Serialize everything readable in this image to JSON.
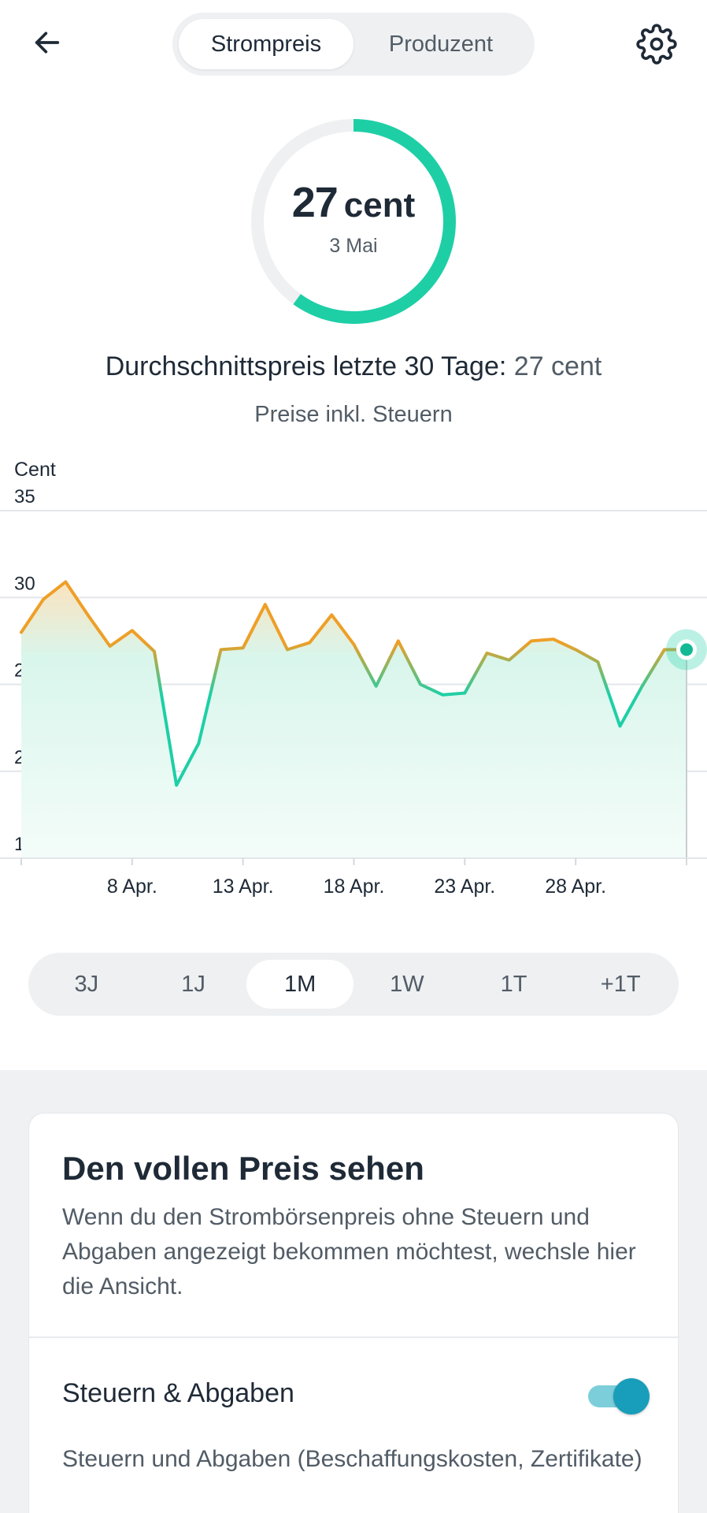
{
  "header": {
    "back_icon": "arrow-left-icon",
    "settings_icon": "gear-icon",
    "tabs": [
      {
        "label": "Strompreis",
        "active": true
      },
      {
        "label": "Produzent",
        "active": false
      }
    ]
  },
  "current_price": {
    "value": "27",
    "unit": "cent",
    "date": "3 Mai",
    "gauge_fraction": 0.6
  },
  "average": {
    "label": "Durchschnittspreis letzte 30 Tage:",
    "value": "27 cent"
  },
  "tax_note": "Preise inkl. Steuern",
  "chart_data": {
    "type": "area",
    "ylabel": "Cent",
    "ylim": [
      15,
      35
    ],
    "yticks": [
      "35",
      "30",
      "25",
      "20",
      "15"
    ],
    "xticks": [
      "8 Apr.",
      "13 Apr.",
      "18 Apr.",
      "23 Apr.",
      "28 Apr."
    ],
    "x_start": "3 Apr.",
    "x_end": "3 Mai",
    "grid": true,
    "colors": {
      "high": "#ee9f27",
      "low": "#1ecfa6"
    },
    "series": [
      {
        "x": [
          "3 Apr.",
          "4 Apr.",
          "5 Apr.",
          "6 Apr.",
          "7 Apr.",
          "8 Apr.",
          "9 Apr.",
          "10 Apr.",
          "11 Apr.",
          "12 Apr.",
          "13 Apr.",
          "14 Apr.",
          "15 Apr.",
          "16 Apr.",
          "17 Apr.",
          "18 Apr.",
          "19 Apr.",
          "20 Apr.",
          "21 Apr.",
          "22 Apr.",
          "23 Apr.",
          "24 Apr.",
          "25 Apr.",
          "26 Apr.",
          "27 Apr.",
          "28 Apr.",
          "29 Apr.",
          "30 Apr.",
          "1 Mai",
          "2 Mai",
          "3 Mai"
        ],
        "values": [
          28.0,
          29.9,
          30.9,
          29.0,
          27.2,
          28.1,
          26.9,
          19.2,
          21.6,
          27.0,
          27.1,
          29.6,
          27.0,
          27.4,
          29.0,
          27.3,
          24.9,
          27.5,
          25.0,
          24.4,
          24.5,
          26.8,
          26.4,
          27.5,
          27.6,
          27.0,
          26.3,
          22.6,
          24.9,
          27.0,
          27.0
        ]
      }
    ]
  },
  "periods": [
    {
      "label": "3J",
      "active": false
    },
    {
      "label": "1J",
      "active": false
    },
    {
      "label": "1M",
      "active": true
    },
    {
      "label": "1W",
      "active": false
    },
    {
      "label": "1T",
      "active": false
    },
    {
      "label": "+1T",
      "active": false
    }
  ],
  "card": {
    "title": "Den vollen Preis sehen",
    "description": "Wenn du den Strombörsenpreis ohne Steuern und Abgaben angezeigt bekommen möchtest, wechsle hier die Ansicht.",
    "toggle_label": "Steuern & Abgaben",
    "toggle_on": true,
    "toggle_description": "Steuern und Abgaben (Beschaffungskosten, Zertifikate)"
  }
}
